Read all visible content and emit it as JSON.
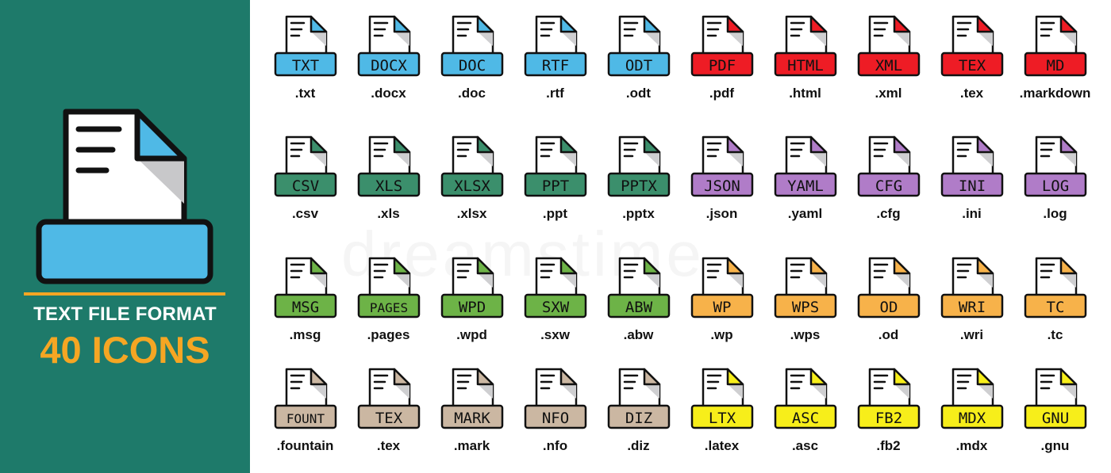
{
  "banner": {
    "title": "TEXT FILE FORMAT",
    "subtitle": "40 ICONS",
    "icon": "text-file-tray-icon",
    "colors": {
      "background": "#1e7a6a",
      "accent": "#f5a623",
      "tray": "#4fb9e6"
    }
  },
  "watermark": "dreamstime",
  "palette": {
    "blue": "#4fb9e6",
    "red": "#ee1c25",
    "green": "#3b8f6c",
    "purple": "#b07cc8",
    "lime": "#6db347",
    "orange": "#f7b24a",
    "tan": "#cbb7a2",
    "yellow": "#f7ee1a"
  },
  "rows": [
    [
      {
        "tag": "TXT",
        "ext": ".txt",
        "color": "blue"
      },
      {
        "tag": "DOCX",
        "ext": ".docx",
        "color": "blue"
      },
      {
        "tag": "DOC",
        "ext": ".doc",
        "color": "blue"
      },
      {
        "tag": "RTF",
        "ext": ".rtf",
        "color": "blue"
      },
      {
        "tag": "ODT",
        "ext": ".odt",
        "color": "blue"
      },
      {
        "tag": "PDF",
        "ext": ".pdf",
        "color": "red"
      },
      {
        "tag": "HTML",
        "ext": ".html",
        "color": "red"
      },
      {
        "tag": "XML",
        "ext": ".xml",
        "color": "red"
      },
      {
        "tag": "TEX",
        "ext": ".tex",
        "color": "red"
      },
      {
        "tag": "MD",
        "ext": ".markdown",
        "color": "red"
      }
    ],
    [
      {
        "tag": "CSV",
        "ext": ".csv",
        "color": "green"
      },
      {
        "tag": "XLS",
        "ext": ".xls",
        "color": "green"
      },
      {
        "tag": "XLSX",
        "ext": ".xlsx",
        "color": "green"
      },
      {
        "tag": "PPT",
        "ext": ".ppt",
        "color": "green"
      },
      {
        "tag": "PPTX",
        "ext": ".pptx",
        "color": "green"
      },
      {
        "tag": "JSON",
        "ext": ".json",
        "color": "purple"
      },
      {
        "tag": "YAML",
        "ext": ".yaml",
        "color": "purple"
      },
      {
        "tag": "CFG",
        "ext": ".cfg",
        "color": "purple"
      },
      {
        "tag": "INI",
        "ext": ".ini",
        "color": "purple"
      },
      {
        "tag": "LOG",
        "ext": ".log",
        "color": "purple"
      }
    ],
    [
      {
        "tag": "MSG",
        "ext": ".msg",
        "color": "lime"
      },
      {
        "tag": "PAGES",
        "ext": ".pages",
        "color": "lime"
      },
      {
        "tag": "WPD",
        "ext": ".wpd",
        "color": "lime"
      },
      {
        "tag": "SXW",
        "ext": ".sxw",
        "color": "lime"
      },
      {
        "tag": "ABW",
        "ext": ".abw",
        "color": "lime"
      },
      {
        "tag": "WP",
        "ext": ".wp",
        "color": "orange"
      },
      {
        "tag": "WPS",
        "ext": ".wps",
        "color": "orange"
      },
      {
        "tag": "OD",
        "ext": ".od",
        "color": "orange"
      },
      {
        "tag": "WRI",
        "ext": ".wri",
        "color": "orange"
      },
      {
        "tag": "TC",
        "ext": ".tc",
        "color": "orange"
      }
    ],
    [
      {
        "tag": "FOUNT",
        "ext": ".fountain",
        "color": "tan"
      },
      {
        "tag": "TEX",
        "ext": ".tex",
        "color": "tan"
      },
      {
        "tag": "MARK",
        "ext": ".mark",
        "color": "tan"
      },
      {
        "tag": "NFO",
        "ext": ".nfo",
        "color": "tan"
      },
      {
        "tag": "DIZ",
        "ext": ".diz",
        "color": "tan"
      },
      {
        "tag": "LTX",
        "ext": ".latex",
        "color": "yellow"
      },
      {
        "tag": "ASC",
        "ext": ".asc",
        "color": "yellow"
      },
      {
        "tag": "FB2",
        "ext": ".fb2",
        "color": "yellow"
      },
      {
        "tag": "MDX",
        "ext": ".mdx",
        "color": "yellow"
      },
      {
        "tag": "GNU",
        "ext": ".gnu",
        "color": "yellow"
      }
    ]
  ]
}
